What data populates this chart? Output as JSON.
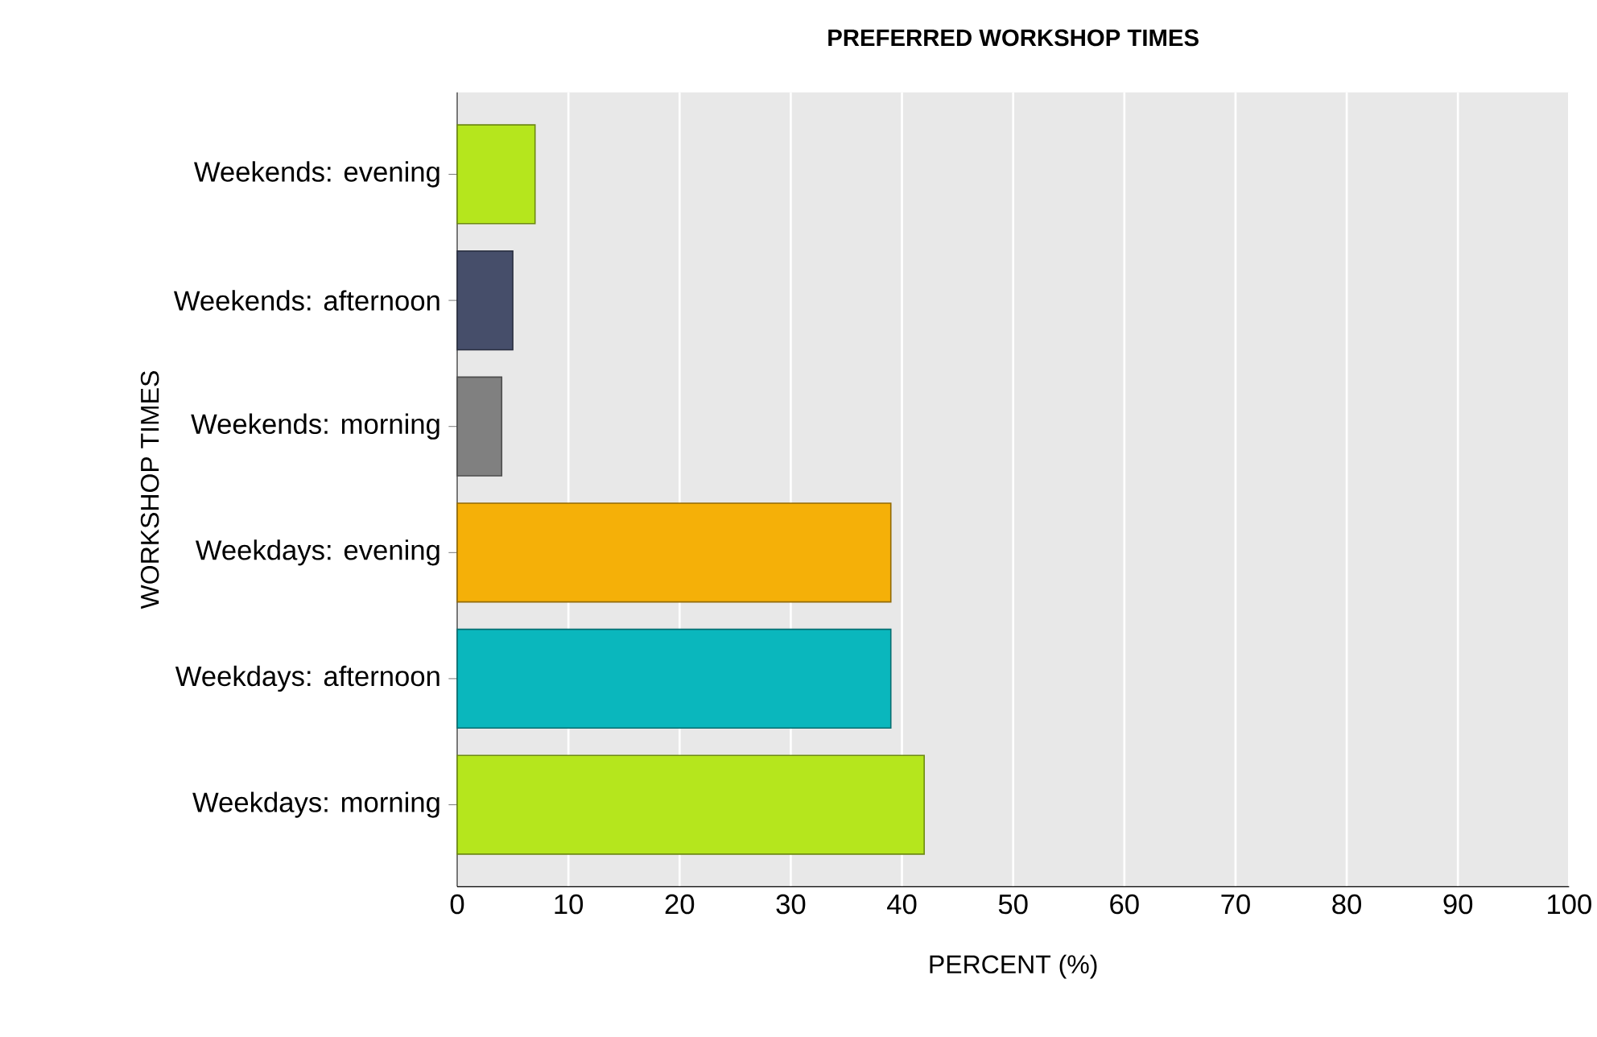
{
  "chart_data": {
    "type": "bar",
    "orientation": "horizontal",
    "title": "PREFERRED WORKSHOP TIMES",
    "xlabel": "PERCENT (%)",
    "ylabel": "WORKSHOP TIMES",
    "categories": [
      "Weekends: evening",
      "Weekends: afternoon",
      "Weekends: morning",
      "Weekdays: evening",
      "Weekdays: afternoon",
      "Weekdays: morning"
    ],
    "values": [
      7,
      5,
      4,
      39,
      39,
      42
    ],
    "colors": [
      "#b5e61d",
      "#464e6a",
      "#808080",
      "#f5b008",
      "#0ab7bd",
      "#b5e61d"
    ],
    "xlim": [
      0,
      100
    ],
    "xticks": [
      0,
      10,
      20,
      30,
      40,
      50,
      60,
      70,
      80,
      90,
      100
    ],
    "grid": "x"
  }
}
